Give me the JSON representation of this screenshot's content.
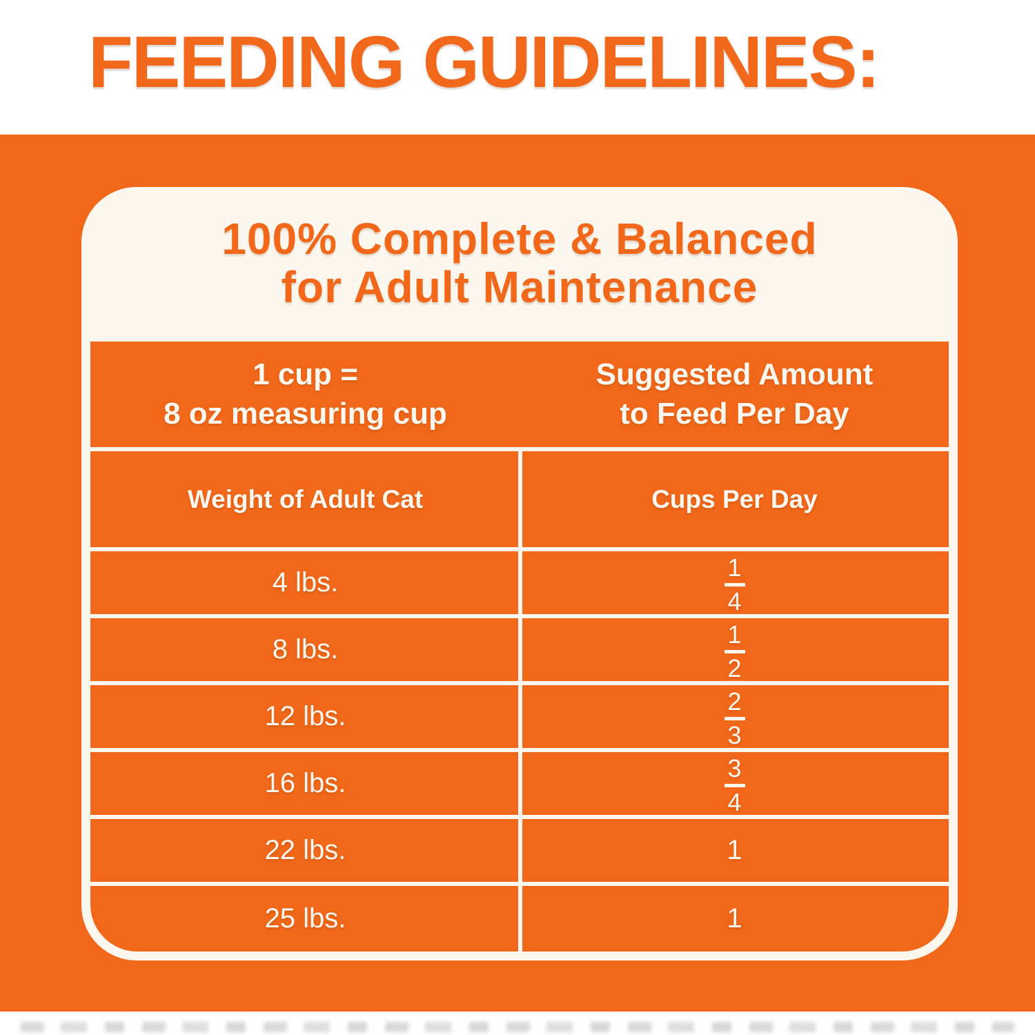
{
  "colors": {
    "orange": "#F2681A",
    "cream_white": "#FBF7EE"
  },
  "header": {
    "title": "FEEDING GUIDELINES:"
  },
  "card": {
    "heading_line1": "100% Complete & Balanced",
    "heading_line2": "for Adult Maintenance"
  },
  "table": {
    "measure_header": {
      "line1": "1 cup =",
      "line2": "8 oz measuring cup"
    },
    "amount_header": {
      "line1": "Suggested Amount",
      "line2": "to Feed Per Day"
    },
    "column_headers": {
      "weight": "Weight of Adult Cat",
      "cups": "Cups Per Day"
    },
    "rows": [
      {
        "weight": "4 lbs.",
        "cups": "1/4",
        "numerator": "1",
        "denominator": "4"
      },
      {
        "weight": "8 lbs.",
        "cups": "1/2",
        "numerator": "1",
        "denominator": "2"
      },
      {
        "weight": "12 lbs.",
        "cups": "2/3",
        "numerator": "2",
        "denominator": "3"
      },
      {
        "weight": "16 lbs.",
        "cups": "3/4",
        "numerator": "3",
        "denominator": "4"
      },
      {
        "weight": "22 lbs.",
        "cups": "1"
      },
      {
        "weight": "25 lbs.",
        "cups": "1"
      }
    ]
  }
}
